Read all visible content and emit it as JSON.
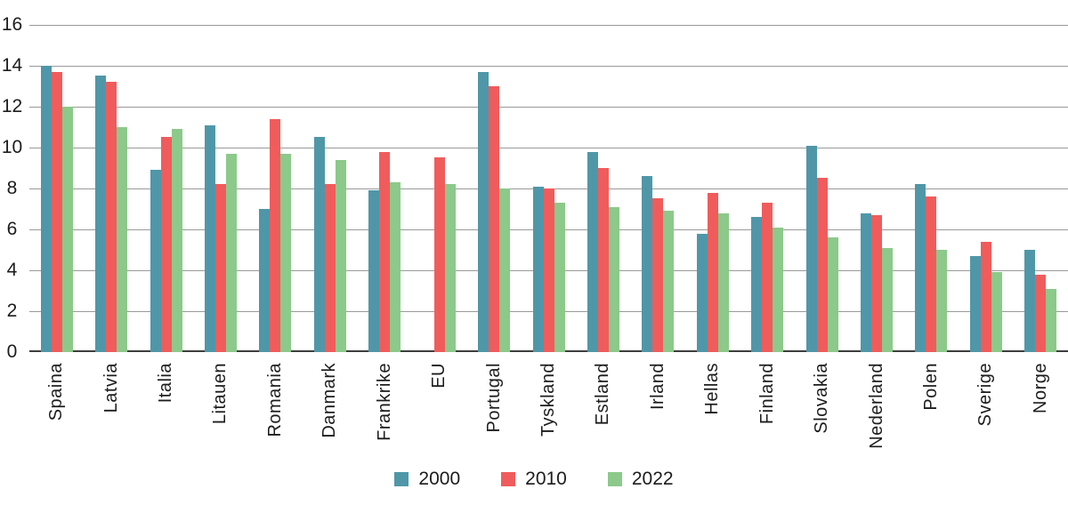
{
  "chart_data": {
    "type": "bar",
    "title": "",
    "xlabel": "",
    "ylabel": "",
    "categories": [
      "Spaina",
      "Latvia",
      "Italia",
      "Litauen",
      "Romania",
      "Danmark",
      "Frankrike",
      "EU",
      "Portugal",
      "Tyskland",
      "Estland",
      "Irland",
      "Hellas",
      "Finland",
      "Slovakia",
      "Nederland",
      "Polen",
      "Sverige",
      "Norge"
    ],
    "series": [
      {
        "name": "2000",
        "color": "#4f97a8",
        "values": [
          14.0,
          13.5,
          8.9,
          11.1,
          7.0,
          10.5,
          7.9,
          null,
          13.7,
          8.1,
          9.8,
          8.6,
          5.8,
          6.6,
          10.1,
          6.8,
          8.2,
          4.7,
          5.0
        ]
      },
      {
        "name": "2010",
        "color": "#f05c5c",
        "values": [
          13.7,
          13.2,
          10.5,
          8.2,
          11.4,
          8.2,
          9.8,
          9.5,
          13.0,
          8.0,
          9.0,
          7.5,
          7.8,
          7.3,
          8.5,
          6.7,
          7.6,
          5.4,
          3.8
        ]
      },
      {
        "name": "2022",
        "color": "#8cc98a",
        "values": [
          12.0,
          11.0,
          10.9,
          9.7,
          9.7,
          9.4,
          8.3,
          8.2,
          8.0,
          7.3,
          7.1,
          6.9,
          6.8,
          6.1,
          5.6,
          5.1,
          5.0,
          3.9,
          3.1
        ]
      }
    ],
    "ylim": [
      0,
      16
    ],
    "yticks": [
      0,
      2,
      4,
      6,
      8,
      10,
      12,
      14,
      16
    ],
    "grid": true,
    "legend_position": "bottom"
  },
  "colors": {
    "gridline": "#9a9a9a",
    "axis": "#3d3d3d",
    "text": "#1c1c1c",
    "background": "#ffffff"
  }
}
